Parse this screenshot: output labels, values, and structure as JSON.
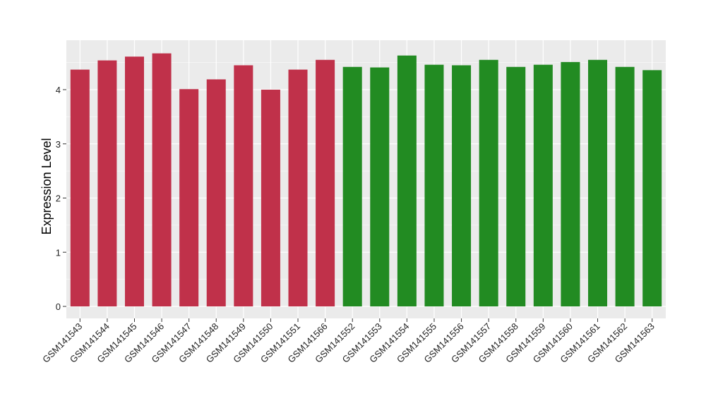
{
  "chart_data": {
    "type": "bar",
    "title": "",
    "xlabel": "",
    "ylabel": "Expression Level",
    "ylim": [
      -0.15,
      4.9
    ],
    "yticks": [
      0,
      1,
      2,
      3,
      4
    ],
    "grid": true,
    "legend": "none",
    "panel_color": "#EBEBEB",
    "grid_color": "#FFFFFF",
    "categories": [
      "GSM141543",
      "GSM141544",
      "GSM141545",
      "GSM141546",
      "GSM141547",
      "GSM141548",
      "GSM141549",
      "GSM141550",
      "GSM141551",
      "GSM141566",
      "GSM141552",
      "GSM141553",
      "GSM141554",
      "GSM141555",
      "GSM141556",
      "GSM141557",
      "GSM141558",
      "GSM141559",
      "GSM141560",
      "GSM141561",
      "GSM141562",
      "GSM141563"
    ],
    "values": [
      4.37,
      4.54,
      4.61,
      4.67,
      4.01,
      4.19,
      4.45,
      4.0,
      4.37,
      4.55,
      4.42,
      4.41,
      4.63,
      4.46,
      4.45,
      4.55,
      4.42,
      4.46,
      4.51,
      4.55,
      4.42,
      4.36
    ],
    "bar_colors": [
      "#C0314A",
      "#C0314A",
      "#C0314A",
      "#C0314A",
      "#C0314A",
      "#C0314A",
      "#C0314A",
      "#C0314A",
      "#C0314A",
      "#C0314A",
      "#228B22",
      "#228B22",
      "#228B22",
      "#228B22",
      "#228B22",
      "#228B22",
      "#228B22",
      "#228B22",
      "#228B22",
      "#228B22",
      "#228B22",
      "#228B22"
    ]
  }
}
